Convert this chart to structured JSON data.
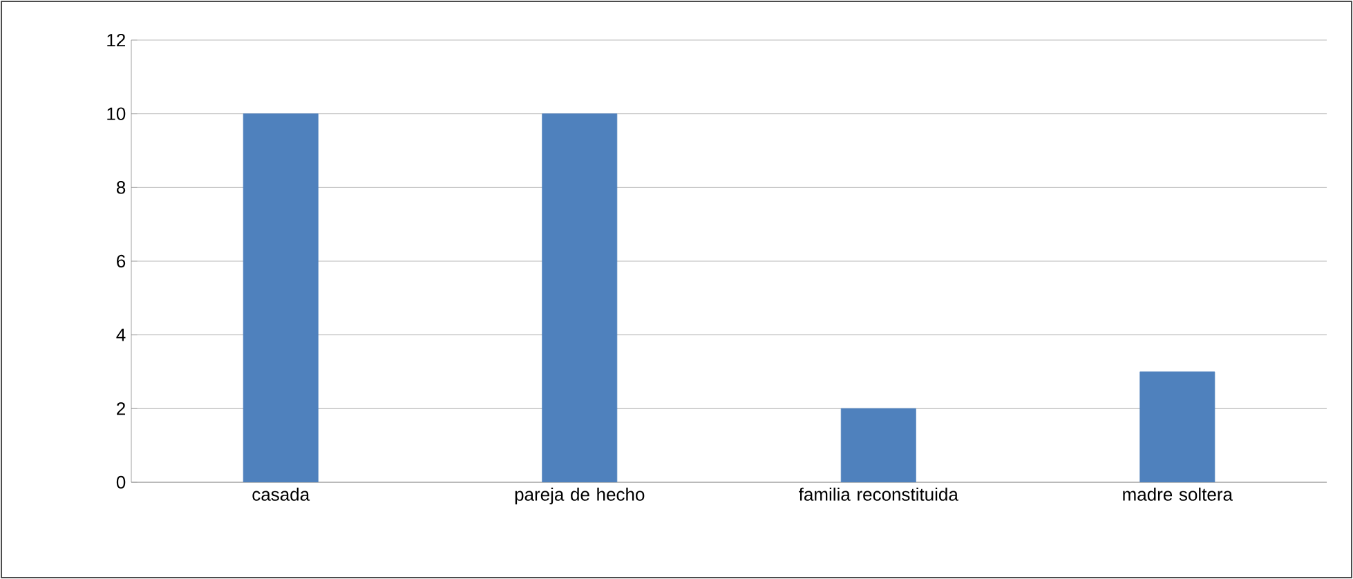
{
  "chart_data": {
    "type": "bar",
    "categories": [
      "casada",
      "pareja de hecho",
      "familia reconstituida",
      "madre soltera"
    ],
    "values": [
      10,
      10,
      2,
      3
    ],
    "color": "#4f81bd",
    "ylim": [
      0,
      12
    ],
    "yticks": [
      0,
      2,
      4,
      6,
      8,
      10,
      12
    ],
    "grid": "y"
  }
}
